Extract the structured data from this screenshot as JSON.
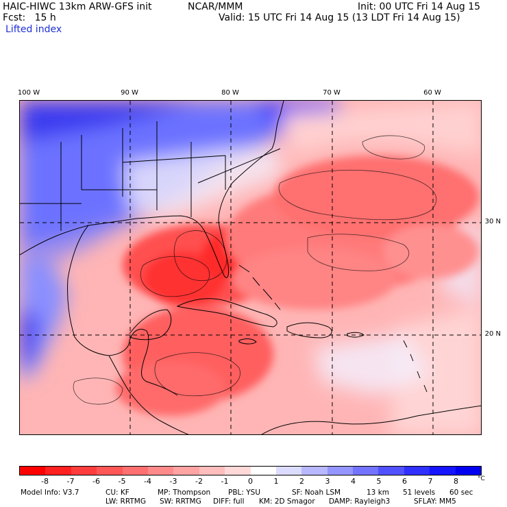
{
  "header": {
    "model_title": "HAIC-HIWC 13km ARW-GFS init",
    "center": "NCAR/MMM",
    "init": "Init: 00 UTC Fri 14 Aug 15",
    "fcst": "Fcst:   15 h",
    "valid": "Valid: 15 UTC Fri 14 Aug 15 (13 LDT Fri 14 Aug 15)",
    "field": "Lifted index"
  },
  "map": {
    "lon_labels": [
      "100 W",
      "90 W",
      "80 W",
      "70 W",
      "60 W"
    ],
    "lat_labels": [
      "30 N",
      "20 N"
    ],
    "contours_of": "Lifted index"
  },
  "colorbar": {
    "ticks": [
      "-8",
      "-7",
      "-6",
      "-5",
      "-4",
      "-3",
      "-2",
      "-1",
      "0",
      "1",
      "2",
      "3",
      "4",
      "5",
      "6",
      "7",
      "8"
    ],
    "unit": "°C",
    "colors": [
      "#ff0000",
      "#ff2020",
      "#ff3d3d",
      "#ff5656",
      "#ff7070",
      "#ff8a8a",
      "#ffa3a3",
      "#ffbdbd",
      "#ffd8d8",
      "#ffffff",
      "#dcdcff",
      "#b8b8ff",
      "#9595ff",
      "#7373ff",
      "#5151ff",
      "#3030ff",
      "#1414ff",
      "#0000f0"
    ]
  },
  "footer": {
    "line1": [
      "Model Info: V3.7",
      "CU: KF",
      "MP: Thompson",
      "PBL: YSU",
      "SF: Noah LSM",
      "13 km",
      "51 levels",
      "60 sec"
    ],
    "line2": [
      "LW: RRTMG",
      "SW: RRTMG",
      "DIFF: full",
      "KM: 2D Smagor",
      "DAMP: Rayleigh3",
      "SFLAY: MM5"
    ]
  }
}
